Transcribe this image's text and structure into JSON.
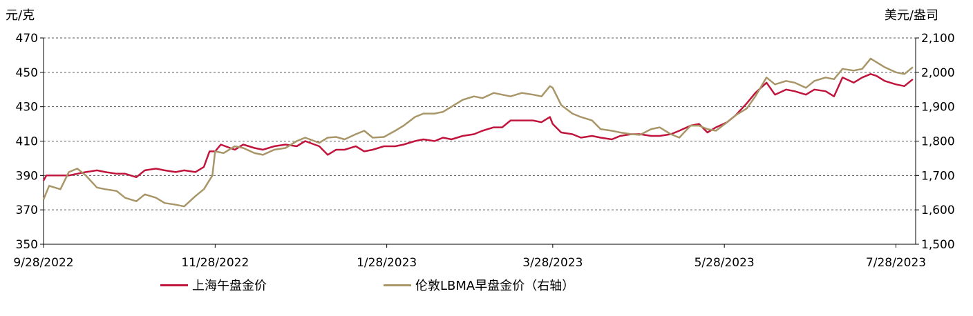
{
  "chart_data": {
    "type": "line",
    "left_axis_unit": "元/克",
    "right_axis_unit": "美元/盎司",
    "left_ylim": [
      350,
      470
    ],
    "left_yticks": [
      "350",
      "370",
      "390",
      "410",
      "430",
      "450",
      "470"
    ],
    "right_ylim": [
      1500,
      2100
    ],
    "right_yticks": [
      "1,500",
      "1,600",
      "1,700",
      "1,800",
      "1,900",
      "2,000",
      "2,100"
    ],
    "x_range": [
      "2022-09-28",
      "2023-08-04"
    ],
    "x_ticks": [
      {
        "date": "2022-09-28",
        "label": "9/28/2022"
      },
      {
        "date": "2022-11-28",
        "label": "11/28/2022"
      },
      {
        "date": "2023-01-28",
        "label": "1/28/2023"
      },
      {
        "date": "2023-03-28",
        "label": "3/28/2023"
      },
      {
        "date": "2023-05-28",
        "label": "5/28/2023"
      },
      {
        "date": "2023-07-28",
        "label": "7/28/2023"
      }
    ],
    "grid": "horizontal-dashed",
    "legend_position": "bottom",
    "series": [
      {
        "name": "上海午盘金价",
        "axis": "left",
        "color": "#c0143c",
        "points": [
          [
            "2022-09-28",
            387
          ],
          [
            "2022-09-29",
            390
          ],
          [
            "2022-10-07",
            390
          ],
          [
            "2022-10-10",
            391
          ],
          [
            "2022-10-13",
            392
          ],
          [
            "2022-10-17",
            393
          ],
          [
            "2022-10-20",
            392
          ],
          [
            "2022-10-24",
            391
          ],
          [
            "2022-10-27",
            391
          ],
          [
            "2022-10-31",
            389
          ],
          [
            "2022-11-03",
            393
          ],
          [
            "2022-11-07",
            394
          ],
          [
            "2022-11-10",
            393
          ],
          [
            "2022-11-14",
            392
          ],
          [
            "2022-11-17",
            393
          ],
          [
            "2022-11-21",
            392
          ],
          [
            "2022-11-24",
            395
          ],
          [
            "2022-11-26",
            404
          ],
          [
            "2022-11-28",
            404
          ],
          [
            "2022-11-30",
            408
          ],
          [
            "2022-12-05",
            405
          ],
          [
            "2022-12-08",
            408
          ],
          [
            "2022-12-12",
            406
          ],
          [
            "2022-12-15",
            405
          ],
          [
            "2022-12-19",
            407
          ],
          [
            "2022-12-23",
            408
          ],
          [
            "2022-12-27",
            407
          ],
          [
            "2022-12-30",
            410
          ],
          [
            "2023-01-04",
            407
          ],
          [
            "2023-01-07",
            402
          ],
          [
            "2023-01-10",
            405
          ],
          [
            "2023-01-13",
            405
          ],
          [
            "2023-01-17",
            407
          ],
          [
            "2023-01-20",
            404
          ],
          [
            "2023-01-23",
            405
          ],
          [
            "2023-01-27",
            407
          ],
          [
            "2023-01-31",
            407
          ],
          [
            "2023-02-03",
            408
          ],
          [
            "2023-02-07",
            410
          ],
          [
            "2023-02-10",
            411
          ],
          [
            "2023-02-14",
            410
          ],
          [
            "2023-02-17",
            412
          ],
          [
            "2023-02-20",
            411
          ],
          [
            "2023-02-24",
            413
          ],
          [
            "2023-02-28",
            414
          ],
          [
            "2023-03-03",
            416
          ],
          [
            "2023-03-07",
            418
          ],
          [
            "2023-03-10",
            418
          ],
          [
            "2023-03-13",
            422
          ],
          [
            "2023-03-17",
            422
          ],
          [
            "2023-03-21",
            422
          ],
          [
            "2023-03-24",
            421
          ],
          [
            "2023-03-27",
            424
          ],
          [
            "2023-03-28",
            420
          ],
          [
            "2023-03-31",
            415
          ],
          [
            "2023-04-04",
            414
          ],
          [
            "2023-04-07",
            412
          ],
          [
            "2023-04-11",
            413
          ],
          [
            "2023-04-14",
            412
          ],
          [
            "2023-04-18",
            411
          ],
          [
            "2023-04-21",
            413
          ],
          [
            "2023-04-25",
            414
          ],
          [
            "2023-04-28",
            414
          ],
          [
            "2023-05-02",
            413
          ],
          [
            "2023-05-05",
            413
          ],
          [
            "2023-05-09",
            414
          ],
          [
            "2023-05-12",
            416
          ],
          [
            "2023-05-16",
            419
          ],
          [
            "2023-05-19",
            420
          ],
          [
            "2023-05-22",
            415
          ],
          [
            "2023-05-25",
            418
          ],
          [
            "2023-05-29",
            421
          ],
          [
            "2023-06-01",
            425
          ],
          [
            "2023-06-05",
            432
          ],
          [
            "2023-06-08",
            438
          ],
          [
            "2023-06-12",
            444
          ],
          [
            "2023-06-15",
            437
          ],
          [
            "2023-06-19",
            440
          ],
          [
            "2023-06-22",
            439
          ],
          [
            "2023-06-26",
            437
          ],
          [
            "2023-06-29",
            440
          ],
          [
            "2023-07-03",
            439
          ],
          [
            "2023-07-06",
            436
          ],
          [
            "2023-07-09",
            447
          ],
          [
            "2023-07-13",
            444
          ],
          [
            "2023-07-16",
            447
          ],
          [
            "2023-07-19",
            449
          ],
          [
            "2023-07-21",
            448
          ],
          [
            "2023-07-24",
            445
          ],
          [
            "2023-07-28",
            443
          ],
          [
            "2023-07-31",
            442
          ],
          [
            "2023-08-03",
            446
          ]
        ]
      },
      {
        "name": "伦敦LBMA早盘金价（右轴）",
        "axis": "right",
        "color": "#a89668",
        "points": [
          [
            "2022-09-28",
            1630
          ],
          [
            "2022-09-30",
            1670
          ],
          [
            "2022-10-04",
            1660
          ],
          [
            "2022-10-07",
            1710
          ],
          [
            "2022-10-10",
            1720
          ],
          [
            "2022-10-13",
            1700
          ],
          [
            "2022-10-17",
            1665
          ],
          [
            "2022-10-20",
            1660
          ],
          [
            "2022-10-24",
            1655
          ],
          [
            "2022-10-27",
            1635
          ],
          [
            "2022-10-31",
            1625
          ],
          [
            "2022-11-03",
            1645
          ],
          [
            "2022-11-07",
            1635
          ],
          [
            "2022-11-10",
            1620
          ],
          [
            "2022-11-14",
            1615
          ],
          [
            "2022-11-17",
            1610
          ],
          [
            "2022-11-21",
            1640
          ],
          [
            "2022-11-24",
            1660
          ],
          [
            "2022-11-27",
            1700
          ],
          [
            "2022-11-28",
            1770
          ],
          [
            "2022-12-01",
            1765
          ],
          [
            "2022-12-05",
            1785
          ],
          [
            "2022-12-08",
            1780
          ],
          [
            "2022-12-12",
            1765
          ],
          [
            "2022-12-15",
            1760
          ],
          [
            "2022-12-19",
            1775
          ],
          [
            "2022-12-23",
            1780
          ],
          [
            "2022-12-27",
            1800
          ],
          [
            "2022-12-30",
            1810
          ],
          [
            "2023-01-04",
            1795
          ],
          [
            "2023-01-07",
            1810
          ],
          [
            "2023-01-10",
            1812
          ],
          [
            "2023-01-13",
            1805
          ],
          [
            "2023-01-17",
            1820
          ],
          [
            "2023-01-20",
            1830
          ],
          [
            "2023-01-23",
            1810
          ],
          [
            "2023-01-27",
            1812
          ],
          [
            "2023-01-31",
            1830
          ],
          [
            "2023-02-03",
            1845
          ],
          [
            "2023-02-07",
            1870
          ],
          [
            "2023-02-10",
            1880
          ],
          [
            "2023-02-14",
            1880
          ],
          [
            "2023-02-17",
            1885
          ],
          [
            "2023-02-20",
            1900
          ],
          [
            "2023-02-24",
            1920
          ],
          [
            "2023-02-28",
            1930
          ],
          [
            "2023-03-03",
            1925
          ],
          [
            "2023-03-07",
            1940
          ],
          [
            "2023-03-10",
            1935
          ],
          [
            "2023-03-13",
            1930
          ],
          [
            "2023-03-17",
            1940
          ],
          [
            "2023-03-21",
            1935
          ],
          [
            "2023-03-24",
            1930
          ],
          [
            "2023-03-27",
            1960
          ],
          [
            "2023-03-28",
            1955
          ],
          [
            "2023-03-31",
            1905
          ],
          [
            "2023-04-04",
            1880
          ],
          [
            "2023-04-07",
            1870
          ],
          [
            "2023-04-11",
            1860
          ],
          [
            "2023-04-14",
            1835
          ],
          [
            "2023-04-18",
            1830
          ],
          [
            "2023-04-21",
            1825
          ],
          [
            "2023-04-25",
            1820
          ],
          [
            "2023-04-28",
            1818
          ],
          [
            "2023-05-02",
            1835
          ],
          [
            "2023-05-05",
            1840
          ],
          [
            "2023-05-09",
            1820
          ],
          [
            "2023-05-12",
            1810
          ],
          [
            "2023-05-16",
            1845
          ],
          [
            "2023-05-19",
            1845
          ],
          [
            "2023-05-22",
            1835
          ],
          [
            "2023-05-25",
            1830
          ],
          [
            "2023-05-29",
            1855
          ],
          [
            "2023-06-01",
            1875
          ],
          [
            "2023-06-05",
            1895
          ],
          [
            "2023-06-08",
            1930
          ],
          [
            "2023-06-12",
            1985
          ],
          [
            "2023-06-15",
            1965
          ],
          [
            "2023-06-19",
            1975
          ],
          [
            "2023-06-22",
            1970
          ],
          [
            "2023-06-26",
            1955
          ],
          [
            "2023-06-29",
            1975
          ],
          [
            "2023-07-03",
            1985
          ],
          [
            "2023-07-06",
            1980
          ],
          [
            "2023-07-09",
            2010
          ],
          [
            "2023-07-13",
            2005
          ],
          [
            "2023-07-16",
            2010
          ],
          [
            "2023-07-19",
            2040
          ],
          [
            "2023-07-21",
            2030
          ],
          [
            "2023-07-24",
            2015
          ],
          [
            "2023-07-28",
            2000
          ],
          [
            "2023-07-31",
            1995
          ],
          [
            "2023-08-03",
            2015
          ]
        ]
      }
    ]
  }
}
